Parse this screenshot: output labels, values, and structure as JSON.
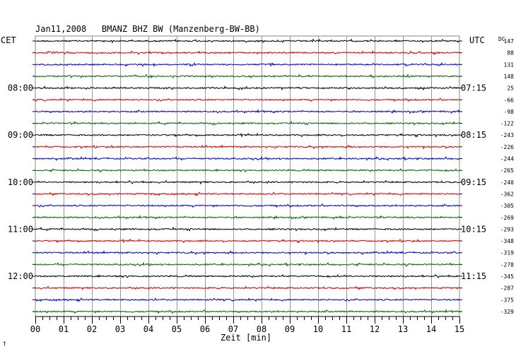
{
  "chart_data": {
    "type": "line",
    "title": "Jan11,2008   BMANZ BHZ BW (Manzenberg-BW-BB)",
    "left_timezone": "CET",
    "right_timezone": "UTC",
    "offset_header": "DC",
    "xlabel": "Zeit [min]",
    "xlim": [
      0,
      15
    ],
    "x_ticks": [
      "00",
      "01",
      "02",
      "03",
      "04",
      "05",
      "06",
      "07",
      "08",
      "09",
      "10",
      "11",
      "12",
      "13",
      "14",
      "15"
    ],
    "left_hour_labels": [
      "08:00",
      "09:00",
      "10:00",
      "11:00",
      "12:00"
    ],
    "right_hour_labels": [
      "07:15",
      "08:15",
      "09:15",
      "10:15",
      "11:15"
    ],
    "trace_colors": [
      "#000000",
      "#dd0000",
      "#0000cc",
      "#006600"
    ],
    "traces": [
      147,
      88,
      131,
      148,
      25,
      -66,
      -98,
      -122,
      -243,
      -226,
      -244,
      -265,
      -240,
      -362,
      -305,
      -269,
      -293,
      -348,
      -319,
      -278,
      -345,
      -287,
      -375,
      -329
    ],
    "corner_mark": "†"
  }
}
